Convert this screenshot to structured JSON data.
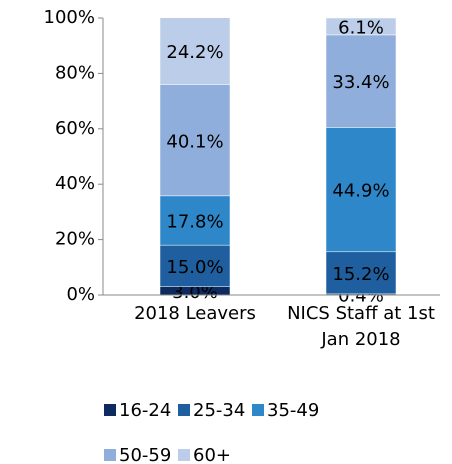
{
  "chart_data": {
    "type": "stacked_bar",
    "categories": [
      "2018 Leavers",
      "NICS Staff at 1st Jan 2018"
    ],
    "series": [
      {
        "name": "16-24",
        "color": "#0e2a5e",
        "values": [
          3.0,
          0.4
        ],
        "value_labels": [
          "3.0%",
          "0.4%"
        ]
      },
      {
        "name": "25-34",
        "color": "#1f5f9f",
        "values": [
          15.0,
          15.2
        ],
        "value_labels": [
          "15.0%",
          "15.2%"
        ]
      },
      {
        "name": "35-49",
        "color": "#2e87c9",
        "values": [
          17.8,
          44.9
        ],
        "value_labels": [
          "17.8%",
          "44.9%"
        ]
      },
      {
        "name": "50-59",
        "color": "#8faedc",
        "values": [
          40.1,
          33.4
        ],
        "value_labels": [
          "40.1%",
          "33.4%"
        ]
      },
      {
        "name": "60+",
        "color": "#bccde9",
        "values": [
          24.2,
          6.1
        ],
        "value_labels": [
          "24.2%",
          "6.1%"
        ]
      }
    ],
    "ylim": [
      0,
      100
    ],
    "yticks": [
      {
        "value": 0,
        "label": "0%"
      },
      {
        "value": 20,
        "label": "20%"
      },
      {
        "value": 40,
        "label": "40%"
      },
      {
        "value": 60,
        "label": "60%"
      },
      {
        "value": 80,
        "label": "80%"
      },
      {
        "value": 100,
        "label": "100%"
      }
    ],
    "legend": "bottom"
  }
}
